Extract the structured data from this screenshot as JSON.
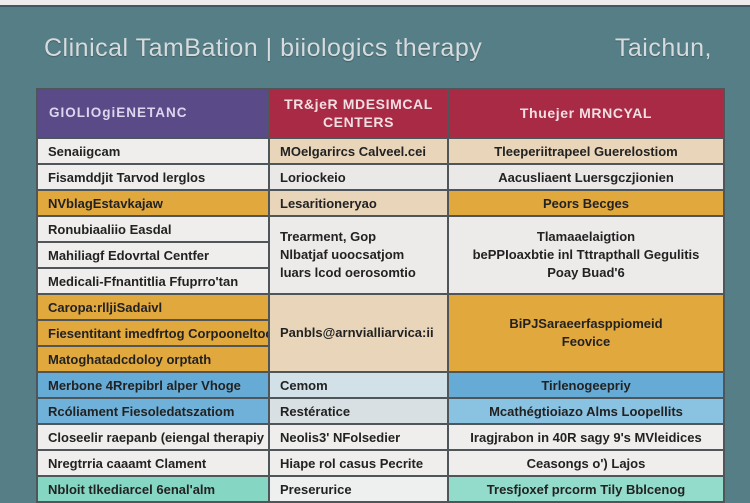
{
  "colors": {
    "page_bg": "#567e86",
    "top_strip": "#ecedec",
    "top_line": "#3d5b62",
    "title_text": "#d6dcde",
    "header_col1_bg": "#5b4a88",
    "header_col1_text": "#ddd6ee",
    "header_col23_bg": "#a82a45",
    "header_col23_text": "#f2dfe2",
    "cell_text": "#222222",
    "white_row": "#efeeec",
    "beige": "#e9d6ba",
    "gold": "#e1a83e",
    "blue": "#66abd6",
    "blue_light": "#8ac2e2",
    "pale_blue": "#d2e1e8",
    "pale_gray": "#d9e0e3",
    "teal_green": "#85d6c3",
    "teal_green_light": "#93dccb"
  },
  "title_bar": {
    "title": "Clinical TamBation | biiologics therapy",
    "right_text": "Taichun,"
  },
  "table": {
    "columns": [
      {
        "label": "GIOLIOgiENETANC"
      },
      {
        "label": "TR&jeR MDESIMCAL\nCENTERS"
      },
      {
        "label": "Thuejer MRNCYAL"
      }
    ],
    "rows": [
      {
        "c1": {
          "text": "Senaiigcam",
          "bg": "#efeeec"
        },
        "c2": {
          "text": "MOelgarircs Calveel.cei",
          "bg": "#e9d6ba"
        },
        "c3": {
          "text": "Tleeperiitrapeel Guerelostiom",
          "bg": "#e9d6ba"
        }
      },
      {
        "c1": {
          "text": "Fisamddjit Tarvod lerglos",
          "bg": "#efeeec"
        },
        "c2": {
          "text": "Loriockeio",
          "bg": "#eae9e7"
        },
        "c3": {
          "text": "Aacusliaent Luersgczjionien",
          "bg": "#eae9e7"
        }
      },
      {
        "c1": {
          "text": "NVblagEstavkajaw",
          "bg": "#e1a83e"
        },
        "c2": {
          "text": "Lesaritioneryao",
          "bg": "#e9d6ba"
        },
        "c3": {
          "text": "Peors Becges",
          "bg": "#e1a83e"
        }
      },
      {
        "c1": {
          "text": "Ronubiaaliio Easdal",
          "bg": "#efeeec"
        },
        "c2": {
          "text": "Trearment, Gop\nNlbatjaf uoocsatjom\nluars lcod oerosomtio",
          "bg": "#edebe9"
        },
        "c3": {
          "text": "Tlamaaelaigtion\nbePPIoaxbtie inl Tttrapthall Gegulitis\nPoay Buad'6",
          "bg": "#edebe9"
        }
      },
      {
        "c1": {
          "text": "Mahiliagf Edovrtal Centfer",
          "bg": "#efeeec"
        }
      },
      {
        "c1": {
          "text": "Medicali-Ffnantitlia Ffuprro'tan",
          "bg": "#efeeec"
        }
      },
      {
        "c1": {
          "text": "Caropa:rlljiSadaivl",
          "bg": "#e1a83e"
        },
        "c2": {
          "text": "Panbls@arnvialliarvica:ii",
          "bg": "#e9d6ba"
        },
        "c3": {
          "text": "BiPJSaraeerfasppiomeid\nFeovice",
          "bg": "#e1a83e"
        }
      },
      {
        "c1": {
          "text": "Fiesentitant imedfrtog Corpooneltoc",
          "bg": "#e1a83e"
        }
      },
      {
        "c1": {
          "text": "Matoghatadcdoloy orptath",
          "bg": "#e1a83e"
        }
      },
      {
        "c1": {
          "text": "Merbone 4Rrepibrl alper Vhoge",
          "bg": "#66abd6"
        },
        "c2": {
          "text": "Cemom",
          "bg": "#d2e1e8"
        },
        "c3": {
          "text": "Tirlenogeepriy",
          "bg": "#66abd6"
        }
      },
      {
        "c1": {
          "text": "Rcóliament Fiesoledatszatiom",
          "bg": "#6fb1d9"
        },
        "c2": {
          "text": "Restératice",
          "bg": "#d9e0e3"
        },
        "c3": {
          "text": "Mcathégtioiazo Alms Loopellits",
          "bg": "#8ac2e2"
        }
      },
      {
        "c1": {
          "text": "Closeelir raepanb (eiengal therapiy",
          "bg": "#efeeec"
        },
        "c2": {
          "text": "Neolis3' NFolsedier",
          "bg": "#efeeec"
        },
        "c3": {
          "text": "Iragjrabon in 40R sagy 9's MVleidices",
          "bg": "#efeeec"
        }
      },
      {
        "c1": {
          "text": "Nregtrria caaamt Clament",
          "bg": "#efeeec"
        },
        "c2": {
          "text": "Hiape rol casus Pecrite",
          "bg": "#efeeec"
        },
        "c3": {
          "text": "Ceasongs o') Lajos",
          "bg": "#efeeec"
        }
      },
      {
        "c1": {
          "text": "Nbloit tlkediarcel 6enal'alm",
          "bg": "#85d6c3"
        },
        "c2": {
          "text": "Preserurice",
          "bg": "#eef0ef"
        },
        "c3": {
          "text": "Tresfjoxef prcorm Tily Bblcenog",
          "bg": "#93dccb"
        }
      }
    ]
  }
}
